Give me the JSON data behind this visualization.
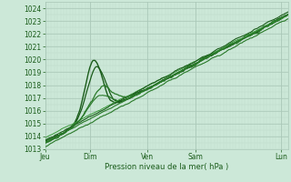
{
  "xlabel": "Pression niveau de la mer( hPa )",
  "ylim": [
    1013,
    1024.5
  ],
  "yticks": [
    1013,
    1014,
    1015,
    1016,
    1017,
    1018,
    1019,
    1020,
    1021,
    1022,
    1023,
    1024
  ],
  "xtick_labels": [
    "Jeu",
    "Dim",
    "Ven",
    "Sam",
    "Lun"
  ],
  "xtick_positions": [
    0.0,
    0.185,
    0.42,
    0.62,
    0.97
  ],
  "xlim": [
    0,
    1
  ],
  "bg_color": "#cce8d8",
  "grid_color_major": "#aac8b8",
  "grid_color_minor": "#bcd8c8",
  "line_color_dark": "#1a5c1a",
  "line_color_mid": "#2a7a2a",
  "line_color_light": "#3a9a3a"
}
